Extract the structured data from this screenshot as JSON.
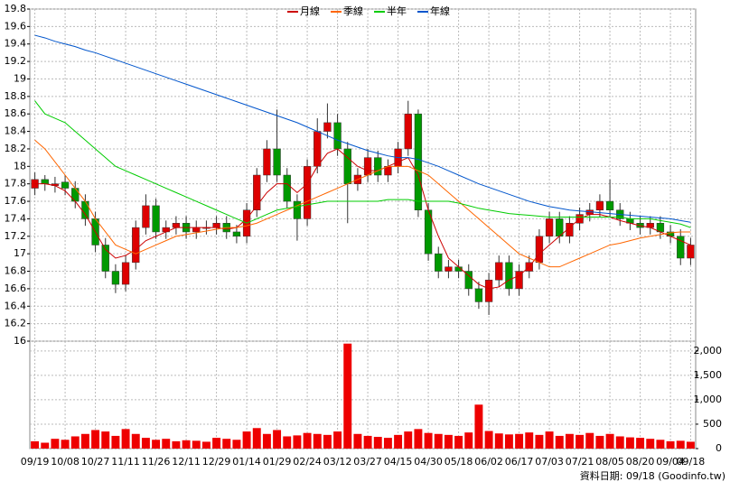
{
  "chart_data": {
    "type": "candlestick",
    "grid": true,
    "legend_position": "top",
    "up_color": "#dd0000",
    "down_color": "#009900",
    "categories": [
      "09/19",
      null,
      null,
      "10/08",
      null,
      null,
      "10/27",
      null,
      null,
      "11/11",
      null,
      null,
      "11/26",
      null,
      null,
      "12/11",
      null,
      null,
      "12/29",
      null,
      null,
      "01/14",
      null,
      null,
      "01/29",
      null,
      null,
      "02/24",
      null,
      null,
      "03/12",
      null,
      null,
      "03/27",
      null,
      null,
      "04/15",
      null,
      null,
      "04/30",
      null,
      null,
      "05/18",
      null,
      null,
      "06/02",
      null,
      null,
      "06/17",
      null,
      null,
      "07/03",
      null,
      null,
      "07/21",
      null,
      null,
      "08/05",
      null,
      null,
      "08/20",
      null,
      null,
      "09/04",
      null,
      "09/18"
    ],
    "open": [
      17.75,
      17.85,
      17.78,
      17.82,
      17.75,
      17.6,
      17.4,
      17.1,
      16.8,
      16.65,
      16.9,
      17.3,
      17.55,
      17.25,
      17.3,
      17.35,
      17.25,
      17.3,
      17.3,
      17.35,
      17.25,
      17.2,
      17.5,
      17.9,
      18.2,
      17.9,
      17.6,
      17.4,
      18.0,
      18.4,
      18.5,
      18.2,
      17.8,
      17.9,
      18.1,
      17.9,
      18.0,
      18.2,
      18.6,
      17.5,
      17.0,
      16.8,
      16.85,
      16.8,
      16.6,
      16.45,
      16.7,
      16.9,
      16.6,
      16.8,
      16.9,
      17.2,
      17.4,
      17.2,
      17.35,
      17.45,
      17.5,
      17.6,
      17.5,
      17.4,
      17.35,
      17.3,
      17.35,
      17.25,
      17.2,
      16.95
    ],
    "high": [
      17.93,
      17.9,
      17.88,
      17.9,
      17.83,
      17.68,
      17.48,
      17.18,
      16.88,
      16.98,
      17.38,
      17.68,
      17.63,
      17.38,
      17.43,
      17.43,
      17.38,
      17.38,
      17.43,
      17.43,
      17.33,
      17.58,
      17.98,
      18.3,
      18.65,
      17.98,
      17.68,
      18.08,
      18.55,
      18.72,
      18.6,
      18.28,
      17.98,
      18.2,
      18.18,
      18.08,
      18.28,
      18.75,
      18.65,
      17.58,
      17.08,
      16.93,
      16.93,
      16.88,
      16.68,
      16.78,
      16.98,
      16.98,
      16.88,
      16.98,
      17.28,
      17.48,
      17.48,
      17.43,
      17.53,
      17.58,
      17.68,
      17.85,
      17.58,
      17.48,
      17.43,
      17.43,
      17.43,
      17.33,
      17.28,
      17.18
    ],
    "low": [
      17.67,
      17.72,
      17.7,
      17.67,
      17.52,
      17.32,
      17.02,
      16.72,
      16.55,
      16.57,
      16.82,
      17.22,
      17.17,
      17.17,
      17.22,
      17.17,
      17.17,
      17.22,
      17.22,
      17.17,
      17.12,
      17.12,
      17.42,
      17.82,
      17.82,
      17.52,
      17.15,
      17.32,
      17.92,
      18.32,
      18.12,
      17.35,
      17.72,
      17.82,
      17.82,
      17.82,
      17.92,
      18.12,
      17.42,
      16.92,
      16.72,
      16.72,
      16.72,
      16.52,
      16.37,
      16.3,
      16.62,
      16.52,
      16.52,
      16.72,
      16.82,
      17.12,
      17.12,
      17.12,
      17.27,
      17.37,
      17.42,
      17.42,
      17.32,
      17.27,
      17.22,
      17.22,
      17.17,
      17.12,
      16.87,
      16.87
    ],
    "close": [
      17.85,
      17.8,
      17.8,
      17.75,
      17.6,
      17.4,
      17.1,
      16.8,
      16.65,
      16.9,
      17.3,
      17.55,
      17.25,
      17.3,
      17.35,
      17.25,
      17.3,
      17.3,
      17.35,
      17.25,
      17.2,
      17.5,
      17.9,
      18.2,
      17.9,
      17.6,
      17.4,
      18.0,
      18.4,
      18.5,
      18.2,
      17.8,
      17.9,
      18.1,
      17.9,
      18.0,
      18.2,
      18.6,
      17.5,
      17.0,
      16.8,
      16.85,
      16.8,
      16.6,
      16.45,
      16.7,
      16.9,
      16.6,
      16.8,
      16.9,
      17.2,
      17.4,
      17.2,
      17.35,
      17.45,
      17.5,
      17.6,
      17.5,
      17.4,
      17.35,
      17.3,
      17.35,
      17.25,
      17.2,
      16.95,
      17.1
    ],
    "ylim": [
      16,
      19.8
    ],
    "yticks": [
      16,
      16.2,
      16.4,
      16.6,
      16.8,
      17,
      17.2,
      17.4,
      17.6,
      17.8,
      18,
      18.2,
      18.4,
      18.6,
      18.8,
      19,
      19.2,
      19.4,
      19.6,
      19.8
    ],
    "series": [
      {
        "name": "月線",
        "color": "#cc0000",
        "values": [
          17.8,
          17.8,
          17.78,
          17.72,
          17.6,
          17.45,
          17.25,
          17.05,
          16.95,
          16.98,
          17.05,
          17.15,
          17.2,
          17.25,
          17.3,
          17.3,
          17.3,
          17.3,
          17.3,
          17.28,
          17.3,
          17.4,
          17.55,
          17.7,
          17.8,
          17.8,
          17.7,
          17.8,
          18.0,
          18.15,
          18.2,
          18.1,
          18.0,
          17.95,
          17.95,
          18.0,
          18.05,
          18.1,
          17.9,
          17.5,
          17.2,
          16.95,
          16.85,
          16.75,
          16.65,
          16.6,
          16.62,
          16.7,
          16.75,
          16.85,
          17.0,
          17.1,
          17.2,
          17.3,
          17.4,
          17.45,
          17.45,
          17.42,
          17.38,
          17.35,
          17.32,
          17.3,
          17.25,
          17.2,
          17.15,
          17.1
        ]
      },
      {
        "name": "季線",
        "color": "#ff6600",
        "values": [
          18.3,
          18.2,
          18.05,
          17.9,
          17.75,
          17.6,
          17.4,
          17.25,
          17.1,
          17.05,
          17.0,
          17.05,
          17.1,
          17.15,
          17.2,
          17.22,
          17.24,
          17.26,
          17.28,
          17.3,
          17.3,
          17.32,
          17.35,
          17.4,
          17.45,
          17.5,
          17.55,
          17.6,
          17.65,
          17.7,
          17.75,
          17.8,
          17.85,
          17.9,
          17.95,
          18.0,
          18.0,
          18.0,
          17.95,
          17.9,
          17.8,
          17.7,
          17.6,
          17.5,
          17.4,
          17.3,
          17.2,
          17.1,
          17.0,
          16.95,
          16.9,
          16.85,
          16.85,
          16.9,
          16.95,
          17.0,
          17.05,
          17.1,
          17.12,
          17.15,
          17.18,
          17.2,
          17.22,
          17.24,
          17.25,
          17.25
        ]
      },
      {
        "name": "半年",
        "color": "#00cc00",
        "values": [
          18.75,
          18.6,
          18.55,
          18.5,
          18.4,
          18.3,
          18.2,
          18.1,
          18.0,
          17.95,
          17.9,
          17.85,
          17.8,
          17.75,
          17.7,
          17.65,
          17.6,
          17.55,
          17.5,
          17.45,
          17.4,
          17.35,
          17.4,
          17.45,
          17.5,
          17.52,
          17.54,
          17.56,
          17.58,
          17.6,
          17.6,
          17.6,
          17.6,
          17.6,
          17.6,
          17.62,
          17.62,
          17.62,
          17.6,
          17.6,
          17.6,
          17.6,
          17.58,
          17.55,
          17.52,
          17.5,
          17.48,
          17.46,
          17.45,
          17.44,
          17.43,
          17.42,
          17.42,
          17.42,
          17.42,
          17.42,
          17.42,
          17.42,
          17.42,
          17.4,
          17.4,
          17.4,
          17.38,
          17.36,
          17.34,
          17.3
        ]
      },
      {
        "name": "年線",
        "color": "#0055cc",
        "values": [
          19.5,
          19.47,
          19.43,
          19.4,
          19.37,
          19.33,
          19.3,
          19.26,
          19.22,
          19.18,
          19.14,
          19.1,
          19.06,
          19.02,
          18.98,
          18.94,
          18.9,
          18.86,
          18.82,
          18.78,
          18.74,
          18.7,
          18.66,
          18.62,
          18.58,
          18.54,
          18.5,
          18.45,
          18.4,
          18.35,
          18.3,
          18.26,
          18.22,
          18.18,
          18.15,
          18.12,
          18.1,
          18.1,
          18.08,
          18.04,
          18.0,
          17.95,
          17.9,
          17.85,
          17.8,
          17.76,
          17.72,
          17.68,
          17.64,
          17.6,
          17.57,
          17.54,
          17.52,
          17.5,
          17.49,
          17.48,
          17.47,
          17.46,
          17.45,
          17.44,
          17.43,
          17.42,
          17.41,
          17.4,
          17.38,
          17.36
        ]
      }
    ],
    "volume": {
      "color": "#ee0000",
      "values": [
        150,
        120,
        200,
        180,
        250,
        300,
        380,
        350,
        260,
        400,
        300,
        220,
        180,
        200,
        150,
        170,
        160,
        140,
        220,
        200,
        180,
        350,
        420,
        300,
        380,
        250,
        270,
        320,
        300,
        280,
        350,
        2150,
        300,
        260,
        240,
        220,
        280,
        350,
        400,
        320,
        300,
        280,
        260,
        330,
        900,
        360,
        310,
        290,
        300,
        330,
        280,
        350,
        260,
        300,
        280,
        320,
        260,
        300,
        250,
        230,
        220,
        200,
        180,
        150,
        160,
        140
      ],
      "ylim": [
        0,
        2200
      ],
      "yticks": [
        0,
        500,
        {
          "value": 1000,
          "label": "1,000"
        },
        {
          "value": 1500,
          "label": "1,500"
        },
        {
          "value": 2000,
          "label": "2,000"
        }
      ]
    },
    "source": "資料日期: 09/18 (Goodinfo.tw)"
  }
}
